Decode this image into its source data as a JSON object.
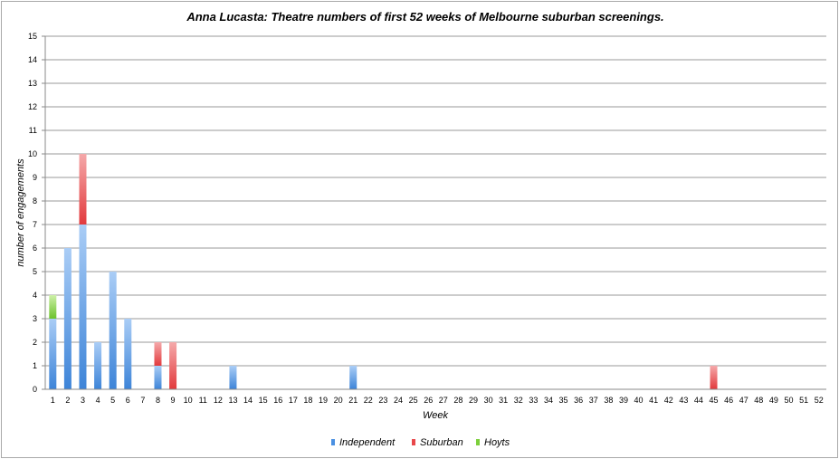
{
  "chart_data": {
    "type": "bar",
    "stacked": true,
    "title": "Anna Lucasta: Theatre numbers of first 52 weeks of Melbourne suburban screenings.",
    "xlabel": "Week",
    "ylabel": "number of engagements",
    "ylim": [
      0,
      15
    ],
    "yticks": [
      "0",
      "1",
      "2",
      "3",
      "4",
      "5",
      "6",
      "7",
      "8",
      "9",
      "10",
      "11",
      "12",
      "13",
      "14",
      "15"
    ],
    "grid": true,
    "legend_position": "bottom",
    "categories": [
      "1",
      "2",
      "3",
      "4",
      "5",
      "6",
      "7",
      "8",
      "9",
      "10",
      "11",
      "12",
      "13",
      "14",
      "15",
      "16",
      "17",
      "18",
      "19",
      "20",
      "21",
      "22",
      "23",
      "24",
      "25",
      "26",
      "27",
      "28",
      "29",
      "30",
      "31",
      "32",
      "33",
      "34",
      "35",
      "36",
      "37",
      "38",
      "39",
      "40",
      "41",
      "42",
      "43",
      "44",
      "45",
      "46",
      "47",
      "48",
      "49",
      "50",
      "51",
      "52"
    ],
    "series": [
      {
        "name": "Independent",
        "color": "#4a90e2",
        "values": [
          3,
          6,
          7,
          2,
          5,
          3,
          0,
          1,
          0,
          0,
          0,
          0,
          1,
          0,
          0,
          0,
          0,
          0,
          0,
          0,
          1,
          0,
          0,
          0,
          0,
          0,
          0,
          0,
          0,
          0,
          0,
          0,
          0,
          0,
          0,
          0,
          0,
          0,
          0,
          0,
          0,
          0,
          0,
          0,
          0,
          0,
          0,
          0,
          0,
          0,
          0,
          0
        ]
      },
      {
        "name": "Suburban",
        "color": "#e8474a",
        "values": [
          0,
          0,
          3,
          0,
          0,
          0,
          0,
          1,
          2,
          0,
          0,
          0,
          0,
          0,
          0,
          0,
          0,
          0,
          0,
          0,
          0,
          0,
          0,
          0,
          0,
          0,
          0,
          0,
          0,
          0,
          0,
          0,
          0,
          0,
          0,
          0,
          0,
          0,
          0,
          0,
          0,
          0,
          0,
          0,
          1,
          0,
          0,
          0,
          0,
          0,
          0,
          0
        ]
      },
      {
        "name": "Hoyts",
        "color": "#7ccf3b",
        "values": [
          1,
          0,
          0,
          0,
          0,
          0,
          0,
          0,
          0,
          0,
          0,
          0,
          0,
          0,
          0,
          0,
          0,
          0,
          0,
          0,
          0,
          0,
          0,
          0,
          0,
          0,
          0,
          0,
          0,
          0,
          0,
          0,
          0,
          0,
          0,
          0,
          0,
          0,
          0,
          0,
          0,
          0,
          0,
          0,
          0,
          0,
          0,
          0,
          0,
          0,
          0,
          0
        ]
      }
    ]
  }
}
